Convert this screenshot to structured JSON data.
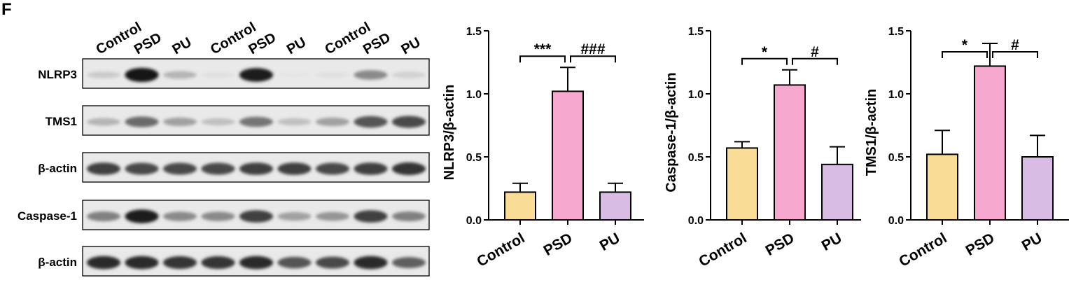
{
  "panel_letter": "F",
  "blot": {
    "lane_labels": [
      "Control",
      "PSD",
      "PU",
      "Control",
      "PSD",
      "PU",
      "Control",
      "PSD",
      "PU"
    ],
    "rows": [
      {
        "label": "NLRP3",
        "intensity": [
          0.15,
          1.0,
          0.25,
          0.05,
          0.95,
          0.03,
          0.05,
          0.45,
          0.12
        ]
      },
      {
        "label": "TMS1",
        "intensity": [
          0.25,
          0.6,
          0.35,
          0.2,
          0.55,
          0.2,
          0.35,
          0.7,
          0.75
        ]
      },
      {
        "label": "β-actin",
        "intensity": [
          0.8,
          0.75,
          0.75,
          0.75,
          0.8,
          0.8,
          0.75,
          0.8,
          0.85
        ]
      },
      {
        "label": "Caspase-1",
        "intensity": [
          0.5,
          0.95,
          0.45,
          0.45,
          0.8,
          0.35,
          0.4,
          0.8,
          0.5
        ]
      },
      {
        "label": "β-actin",
        "intensity": [
          0.9,
          0.9,
          0.85,
          0.85,
          0.9,
          0.7,
          0.75,
          0.9,
          0.65
        ]
      }
    ]
  },
  "colors": {
    "Control": "#f9dc96",
    "PSD": "#f7a8cf",
    "PU": "#d8bce4"
  },
  "chart_data": [
    {
      "type": "bar",
      "categories": [
        "Control",
        "PSD",
        "PU"
      ],
      "values": [
        0.22,
        1.02,
        0.22
      ],
      "errors": [
        0.07,
        0.19,
        0.07
      ],
      "ylabel": "NLRP3/β-actin",
      "ylim": [
        0,
        1.5
      ],
      "yticks": [
        "0.0",
        "0.5",
        "1.0",
        "1.5"
      ],
      "annotations": [
        {
          "from": 0,
          "to": 1,
          "text": "***"
        },
        {
          "from": 1,
          "to": 2,
          "text": "###"
        }
      ]
    },
    {
      "type": "bar",
      "categories": [
        "Control",
        "PSD",
        "PU"
      ],
      "values": [
        0.57,
        1.07,
        0.44
      ],
      "errors": [
        0.05,
        0.12,
        0.14
      ],
      "ylabel": "Caspase-1/β-actin",
      "ylim": [
        0,
        1.5
      ],
      "yticks": [
        "0.0",
        "0.5",
        "1.0",
        "1.5"
      ],
      "annotations": [
        {
          "from": 0,
          "to": 1,
          "text": "*"
        },
        {
          "from": 1,
          "to": 2,
          "text": "#"
        }
      ]
    },
    {
      "type": "bar",
      "categories": [
        "Control",
        "PSD",
        "PU"
      ],
      "values": [
        0.52,
        1.22,
        0.5
      ],
      "errors": [
        0.19,
        0.18,
        0.17
      ],
      "ylabel": "TMS1/β-actin",
      "ylim": [
        0,
        1.5
      ],
      "yticks": [
        "0.0",
        "0.5",
        "1.0",
        "1.5"
      ],
      "annotations": [
        {
          "from": 0,
          "to": 1,
          "text": "*"
        },
        {
          "from": 1,
          "to": 2,
          "text": "#"
        }
      ]
    }
  ]
}
